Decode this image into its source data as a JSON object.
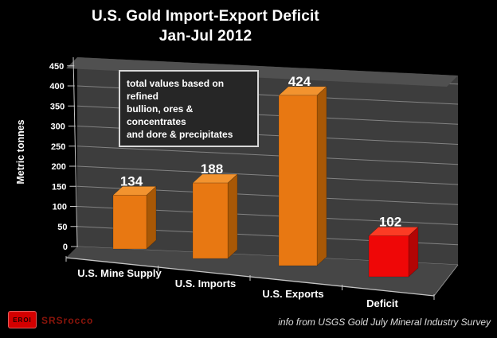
{
  "title": {
    "line1": "U.S. Gold Import-Export Deficit",
    "line2": "Jan-Jul 2012"
  },
  "annotation": {
    "lines": [
      "total values based on refined",
      "bullion, ores & concentrates",
      "and dore & precipitates"
    ]
  },
  "chart_data": {
    "type": "bar",
    "style": "3d-column-dark",
    "title": "U.S. Gold Import-Export Deficit Jan-Jul 2012",
    "categories": [
      "U.S. Mine Supply",
      "U.S. Imports",
      "U.S. Exports",
      "Deficit"
    ],
    "values": [
      134,
      188,
      424,
      102
    ],
    "ylabel": "Metric tonnes",
    "ylim": [
      0,
      450
    ],
    "yticks": [
      0,
      50,
      100,
      150,
      200,
      250,
      300,
      350,
      400,
      450
    ],
    "grid": true,
    "legend": false,
    "bar_faces": [
      {
        "front": "#E87812",
        "top": "#F2932F",
        "side": "#A85806"
      },
      {
        "front": "#E87812",
        "top": "#F2932F",
        "side": "#A85806"
      },
      {
        "front": "#E87812",
        "top": "#F2932F",
        "side": "#A85806"
      },
      {
        "front": "#EF0707",
        "top": "#FB3B24",
        "side": "#B30505"
      }
    ]
  },
  "footer": {
    "logo_text": "EROI",
    "brand": "SRSrocco",
    "source": "info from USGS Gold July Mineral Industry Survey"
  },
  "colors": {
    "background": "#000000",
    "wall": "#3D3D3D",
    "wall_top": "#505050",
    "floor": "#464646",
    "gridline": "#8F8F8F",
    "axis": "#C4C4C4",
    "text": "#FFFFFF",
    "annotation_bg": "#262626",
    "annotation_border": "#D8D8D8",
    "logo_red": "#D40000",
    "brand_red": "#8B150B",
    "source_text": "#DDDDDD"
  }
}
